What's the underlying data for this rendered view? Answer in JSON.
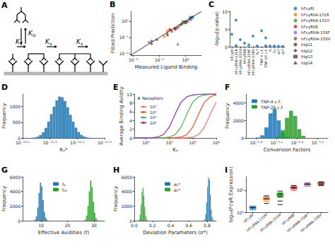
{
  "chart_data": [
    {
      "title": "A",
      "type": "diagram",
      "labels": [
        {
          "main": "K",
          "sub": "D"
        },
        {
          "main": "K",
          "sub": "x"
        },
        {
          "main": "K",
          "sub": "x"
        },
        {
          "main": "K",
          "sub": "x"
        }
      ]
    },
    {
      "title": "B",
      "type": "scatter",
      "log": true,
      "x_label": "Measured Ligand Binding",
      "y_label": "Fitted Prediction",
      "xlim": [
        0.008,
        4
      ],
      "ylim": [
        0.008,
        4
      ],
      "xticks": [
        {
          "value": 0.01,
          "label": "10⁻²"
        },
        {
          "value": 0.1,
          "label": "10⁻¹"
        },
        {
          "value": 1,
          "label": "10⁰"
        }
      ],
      "yticks": [
        {
          "value": 0.01,
          "label": "10⁻²"
        },
        {
          "value": 0.1,
          "label": "10⁻¹"
        },
        {
          "value": 1,
          "label": "10⁰"
        }
      ],
      "legend": "right",
      "series": [
        {
          "name": "hFcγRI",
          "color": "#1f77b4",
          "x": [
            1.5,
            0.05,
            1.8,
            1.2
          ],
          "y": [
            1.6,
            0.06,
            1.7,
            1.0
          ],
          "markers": [
            "circle",
            "diamond",
            "square",
            "triangle"
          ]
        },
        {
          "name": "hFcγRIIA-131R",
          "color": "#ff7f0e",
          "x": [
            0.6,
            0.2,
            0.9,
            0.15
          ],
          "y": [
            0.55,
            0.25,
            0.8,
            0.12
          ],
          "markers": [
            "circle",
            "diamond",
            "square",
            "triangle"
          ]
        },
        {
          "name": "hFcγRIIA-131H",
          "color": "#2ca02c",
          "x": [
            0.7,
            0.4,
            1.0,
            0.2
          ],
          "y": [
            0.65,
            0.3,
            0.9,
            0.18
          ],
          "markers": [
            "circle",
            "diamond",
            "square",
            "triangle"
          ]
        },
        {
          "name": "hFcγRIIB",
          "color": "#d62728",
          "x": [
            0.25,
            0.05,
            0.4,
            0.2
          ],
          "y": [
            0.3,
            0.04,
            0.35,
            0.15
          ],
          "markers": [
            "circle",
            "diamond",
            "square",
            "triangle"
          ]
        },
        {
          "name": "hFcγRIIIA-158F",
          "color": "#9467bd",
          "x": [
            0.5,
            0.04,
            0.8,
            0.5
          ],
          "y": [
            0.4,
            0.05,
            0.9,
            0.04
          ],
          "markers": [
            "circle",
            "diamond",
            "square",
            "triangle"
          ]
        },
        {
          "name": "hFcγRIIIA-158V",
          "color": "#8c564b",
          "x": [
            1.0,
            0.08,
            1.5,
            0.3
          ],
          "y": [
            0.8,
            0.07,
            1.3,
            0.25
          ],
          "markers": [
            "circle",
            "diamond",
            "square",
            "triangle"
          ]
        }
      ],
      "isotypes": [
        {
          "name": "hIgG1",
          "marker": "circle"
        },
        {
          "name": "hIgG2",
          "marker": "diamond"
        },
        {
          "name": "hIgG3",
          "marker": "square"
        },
        {
          "name": "hIgG4",
          "marker": "triangle"
        }
      ],
      "reference_line": {
        "x": [
          0.008,
          4
        ],
        "y": [
          0.008,
          4
        ],
        "color": "#000000"
      }
    },
    {
      "title": "C",
      "type": "scatter",
      "y_label": "-log₁₀(q-value)",
      "color": "#1f77b4",
      "categories": [
        "hFcγRI",
        "hFcγRIIA-131R",
        "hFcγRIIA-131H",
        "hFcγRIIB",
        "hFcγRIIIA-158F",
        "hFcγRIIIA-158V",
        "Kₓ*",
        "TNP-4 c.f.",
        "TNP-26 c.f.",
        "f₄",
        "f₂₆",
        "σ₁*",
        "σ₂*"
      ],
      "x": [
        "hFcγRI",
        "hFcγRIIA-131R",
        "hFcγRIIA-131R",
        "hFcγRIIA-131H",
        "hFcγRIIB",
        "hFcγRIIIA-158F",
        "hFcγRIIIA-158V",
        "Kₓ*",
        "TNP-4 c.f.",
        "TNP-26 c.f.",
        "TNP-26 c.f.",
        "f₄",
        "f₂₆",
        "σ₁*",
        "σ₂*"
      ],
      "y": [
        3.5,
        7.5,
        0.3,
        2,
        1,
        0.5,
        3,
        0.2,
        4.5,
        2.5,
        0.3,
        0.2,
        0.2,
        0.1,
        0.1
      ],
      "ylim": [
        0,
        10
      ],
      "yticks": [
        0,
        5,
        10
      ]
    },
    {
      "title": "D",
      "type": "histogram",
      "log": "x",
      "x_label": "Kₓ*",
      "y_label": "Frequency",
      "xlim": [
        1e-13,
        3.162e-12
      ],
      "xticks": [
        {
          "value": 1e-13,
          "label": "10⁻¹³·⁰"
        },
        {
          "value": 3.162e-13,
          "label": "10⁻¹²·⁵"
        },
        {
          "value": 1e-12,
          "label": "10⁻¹²·⁰"
        },
        {
          "value": 3.162e-12,
          "label": "10⁻¹¹·⁵"
        }
      ],
      "ylim": [
        0,
        1400
      ],
      "yticks": [
        0,
        500,
        1000
      ],
      "series": [
        {
          "color": "#1f77b4",
          "bins": [
            1.413e-13,
            1.585e-13,
            1.778e-13,
            1.995e-13,
            2.239e-13,
            2.512e-13,
            2.818e-13,
            3.162e-13,
            3.548e-13,
            3.981e-13,
            4.467e-13,
            5.012e-13,
            5.623e-13,
            6.31e-13,
            7.079e-13,
            7.943e-13,
            8.913e-13,
            1e-12,
            1.122e-12,
            1.259e-12,
            1.413e-12,
            1.585e-12,
            1.778e-12
          ],
          "counts": [
            5,
            15,
            40,
            90,
            180,
            320,
            520,
            760,
            1000,
            1200,
            1320,
            1300,
            1180,
            980,
            740,
            520,
            330,
            190,
            100,
            45,
            18,
            6
          ]
        }
      ]
    },
    {
      "title": "E",
      "type": "line",
      "log": "x",
      "x_label": "Kₐ",
      "y_label": "Average Binding Avidity",
      "legend": "upper left",
      "legend_title": "# Receptors",
      "xlim": [
        100,
        1000000000.0
      ],
      "xticks": [
        {
          "value": 1000.0,
          "label": "10³"
        },
        {
          "value": 100000.0,
          "label": "10⁵"
        },
        {
          "value": 10000000.0,
          "label": "10⁷"
        },
        {
          "value": 1000000000.0,
          "label": "10⁹"
        }
      ],
      "ylim": [
        0,
        10
      ],
      "yticks": [
        0,
        2,
        4,
        6,
        8,
        10
      ],
      "x": [
        100,
        316.2,
        1000.0,
        3162,
        10000.0,
        31620,
        100000.0,
        316200,
        1000000.0,
        3162000,
        10000000.0,
        31620000,
        100000000.0,
        316200000,
        1000000000.0
      ],
      "series": [
        {
          "name": "10³",
          "color": "#f08080",
          "values": [
            0,
            0,
            0,
            0,
            0,
            0,
            0,
            0,
            0,
            0.05,
            0.2,
            0.8,
            2.5,
            5.5,
            8.2
          ]
        },
        {
          "name": "10⁴",
          "color": "#e8603c",
          "values": [
            0,
            0,
            0,
            0,
            0,
            0,
            0,
            0.05,
            0.2,
            0.8,
            2.5,
            5.5,
            8.2,
            9.4,
            9.8
          ]
        },
        {
          "name": "10⁵",
          "color": "#5cb85c",
          "values": [
            0,
            0,
            0,
            0,
            0,
            0.05,
            0.2,
            0.8,
            2.5,
            5.5,
            8.2,
            9.4,
            9.8,
            9.95,
            10
          ]
        },
        {
          "name": "10⁶",
          "color": "#8e44ad",
          "values": [
            0,
            0,
            0,
            0.05,
            0.2,
            0.8,
            2.5,
            5.5,
            8.2,
            9.4,
            9.8,
            9.95,
            10,
            10,
            10
          ]
        }
      ]
    },
    {
      "title": "F",
      "type": "histogram",
      "log": "x",
      "x_label": "Conversion Factors",
      "y_label": "Frequency",
      "legend": "upper left",
      "xlim": [
        1.259e-06,
        7.943e-06
      ],
      "xticks": [
        {
          "value": 1.585e-06,
          "label": "10⁻⁵·⁸"
        },
        {
          "value": 2.512e-06,
          "label": "10⁻⁵·⁶"
        },
        {
          "value": 3.981e-06,
          "label": "10⁻⁵·⁴"
        },
        {
          "value": 6.31e-06,
          "label": "10⁻⁵·²"
        }
      ],
      "ylim": [
        0,
        5000
      ],
      "yticks": [
        0,
        2000,
        4000
      ],
      "series": [
        {
          "name": "TNP-4 c.f.",
          "color": "#1f77b4",
          "bins": [
            1.585e-06,
            1.738e-06,
            1.905e-06,
            2.089e-06,
            2.291e-06,
            2.512e-06,
            2.754e-06,
            3.02e-06,
            3.311e-06,
            3.631e-06,
            3.981e-06,
            4.365e-06,
            4.786e-06
          ],
          "counts": [
            50,
            300,
            1200,
            2800,
            3300,
            2000,
            700,
            150,
            20,
            0,
            0,
            0
          ]
        },
        {
          "name": "TNP-26 c.f.",
          "color": "#2ca02c",
          "bins": [
            1.585e-06,
            1.738e-06,
            1.905e-06,
            2.089e-06,
            2.291e-06,
            2.512e-06,
            2.754e-06,
            3.02e-06,
            3.311e-06,
            3.631e-06,
            3.981e-06,
            4.365e-06,
            4.786e-06
          ],
          "counts": [
            0,
            0,
            0,
            0,
            20,
            200,
            900,
            2300,
            3100,
            2500,
            1000,
            250
          ]
        }
      ]
    },
    {
      "title": "G",
      "type": "histogram",
      "x_label": "Effective Avidities (f)",
      "y_label": "Frequency",
      "legend": "upper center",
      "xlim": [
        3,
        34
      ],
      "xticks": [
        10,
        20,
        30
      ],
      "ylim": [
        0,
        6000
      ],
      "yticks": [
        0,
        2000,
        4000,
        6000
      ],
      "series": [
        {
          "name": "f₄",
          "color": "#1f77b4",
          "bins": [
            7,
            7.5,
            8,
            8.5,
            9,
            9.5,
            10,
            10.5,
            11,
            11.5,
            12,
            12.5,
            13
          ],
          "counts": [
            20,
            150,
            600,
            1800,
            3800,
            5200,
            4700,
            2800,
            1200,
            400,
            100,
            20
          ]
        },
        {
          "name": "f₂₆",
          "color": "#2ca02c",
          "bins": [
            26,
            26.5,
            27,
            27.5,
            28,
            28.5,
            29,
            29.5,
            30,
            30.5,
            31,
            31.5,
            32
          ],
          "counts": [
            20,
            150,
            700,
            2000,
            4000,
            5500,
            4600,
            2600,
            1100,
            350,
            80,
            15
          ]
        }
      ]
    },
    {
      "title": "H",
      "type": "histogram",
      "x_label": "Deviation Parameters (σ*)",
      "y_label": "Frequency",
      "legend": "upper center",
      "xlim": [
        0,
        0.9
      ],
      "xticks": [
        {
          "value": 0,
          "label": "0.0"
        },
        {
          "value": 0.2,
          "label": "0.2"
        },
        {
          "value": 0.4,
          "label": "0.4"
        },
        {
          "value": 0.6,
          "label": "0.6"
        },
        {
          "value": 0.8,
          "label": "0.8"
        }
      ],
      "ylim": [
        0,
        6000
      ],
      "yticks": [
        0,
        2000,
        4000,
        6000
      ],
      "series": [
        {
          "name": "σ₁*",
          "color": "#1f77b4",
          "bins": [
            0.76,
            0.77,
            0.78,
            0.79,
            0.8,
            0.81,
            0.82,
            0.83,
            0.84,
            0.85,
            0.86,
            0.87,
            0.88
          ],
          "counts": [
            30,
            200,
            900,
            2500,
            4600,
            5900,
            5600,
            3500,
            1500,
            500,
            120,
            20
          ]
        },
        {
          "name": "σ₂*",
          "color": "#2ca02c",
          "bins": [
            0.04,
            0.05,
            0.06,
            0.07,
            0.08,
            0.09,
            0.1,
            0.11,
            0.12,
            0.13,
            0.14,
            0.15,
            0.16
          ],
          "counts": [
            20,
            150,
            800,
            2200,
            3900,
            4500,
            3400,
            1900,
            700,
            200,
            50,
            10
          ]
        }
      ]
    },
    {
      "title": "I",
      "type": "box",
      "log": "y",
      "y_label": "log₁₀(FcγR Expression)",
      "categories": [
        "hFcγRI",
        "hFcγRIIA-131R",
        "hFcγRIIA-131H",
        "hFcγRIIB",
        "hFcγRIIIA-158F",
        "hFcγRIIIA-158V"
      ],
      "colors": [
        "#1f77b4",
        "#ff7f0e",
        "#2ca02c",
        "#d62728",
        "#9467bd",
        "#8c564b"
      ],
      "ylim": [
        100000,
        4000000
      ],
      "yticks": [
        {
          "value": 100000,
          "label": "10⁵"
        },
        {
          "value": 1000000,
          "label": "10⁶"
        }
      ],
      "boxes": [
        [
          130000,
          150000,
          160000,
          170000,
          190000
        ],
        [
          320000,
          380000,
          420000,
          460000,
          520000
        ],
        [
          480000,
          550000,
          600000,
          650000,
          750000
        ],
        [
          1000000,
          1200000,
          1300000,
          1400000,
          1600000
        ],
        [
          1500000,
          1700000,
          1800000,
          1950000,
          2200000
        ],
        [
          1600000,
          1850000,
          2000000,
          2150000,
          2400000
        ]
      ],
      "measured": [
        [
          160000
        ],
        [
          250000,
          400000,
          550000
        ],
        [
          220000,
          320000,
          500000,
          700000,
          900000
        ],
        [
          1300000,
          1600000
        ],
        [
          1900000
        ],
        [
          1700000,
          2300000
        ]
      ]
    }
  ]
}
